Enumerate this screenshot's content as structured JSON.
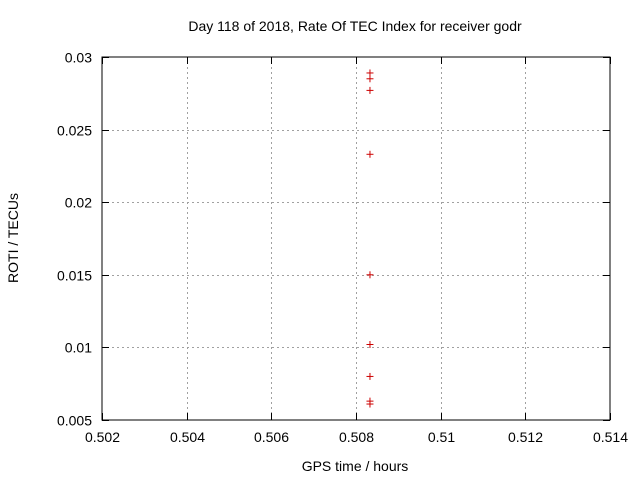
{
  "chart_data": {
    "type": "scatter",
    "title": "Day 118 of 2018, Rate Of TEC Index for receiver godr",
    "xlabel": "GPS time / hours",
    "ylabel": "ROTI / TECUs",
    "xlim": [
      0.502,
      0.514
    ],
    "ylim": [
      0.005,
      0.03
    ],
    "xticks": [
      0.502,
      0.504,
      0.506,
      0.508,
      0.51,
      0.512,
      0.514
    ],
    "xtick_labels": [
      "0.502",
      "0.504",
      "0.506",
      "0.508",
      "0.51",
      "0.512",
      "0.514"
    ],
    "yticks": [
      0.005,
      0.01,
      0.015,
      0.02,
      0.025,
      0.03
    ],
    "ytick_labels": [
      "0.005",
      "0.01",
      "0.015",
      "0.02",
      "0.025",
      "0.03"
    ],
    "grid": true,
    "marker": "+",
    "color": "#cc0000",
    "series": [
      {
        "name": "ROTI",
        "points": [
          {
            "x": 0.50833,
            "y": 0.0289
          },
          {
            "x": 0.50833,
            "y": 0.0285
          },
          {
            "x": 0.50833,
            "y": 0.0277
          },
          {
            "x": 0.50833,
            "y": 0.0233
          },
          {
            "x": 0.50833,
            "y": 0.015
          },
          {
            "x": 0.50833,
            "y": 0.0102
          },
          {
            "x": 0.50833,
            "y": 0.008
          },
          {
            "x": 0.50833,
            "y": 0.0063
          },
          {
            "x": 0.50833,
            "y": 0.0061
          }
        ]
      }
    ]
  }
}
